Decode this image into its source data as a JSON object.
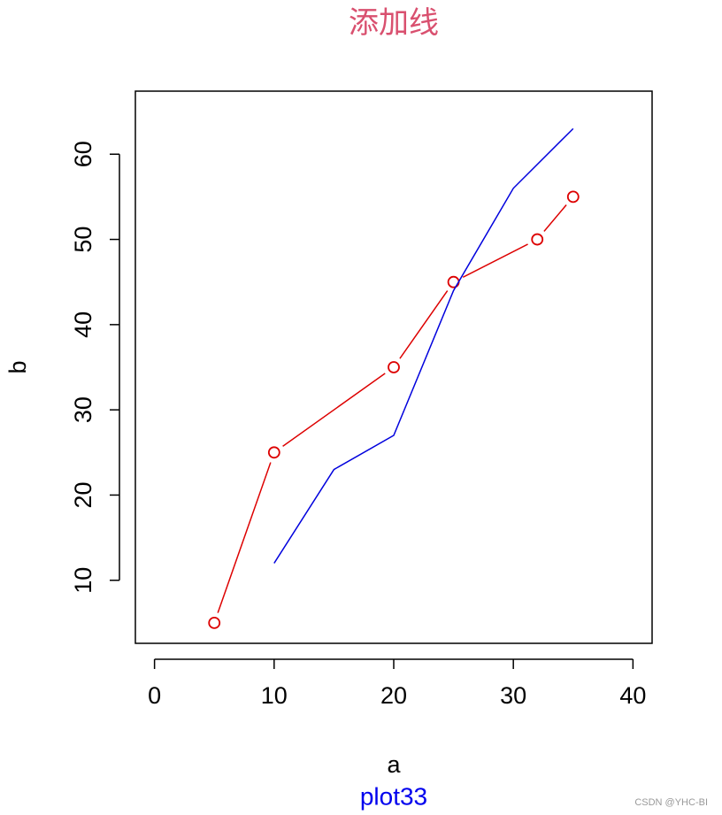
{
  "chart_data": {
    "type": "line",
    "title": "添加线",
    "subtitle": "plot33",
    "x_label": "a",
    "y_label": "b",
    "xlim": [
      -1.6,
      41.6
    ],
    "ylim": [
      2.6,
      67.4
    ],
    "xticks": [
      0,
      10,
      20,
      30,
      40
    ],
    "yticks": [
      10,
      20,
      30,
      40,
      50,
      60
    ],
    "series": [
      {
        "color": "#dd0000",
        "marker": "circle",
        "x": [
          5,
          10,
          20,
          25,
          32,
          35
        ],
        "values": [
          5,
          25,
          35,
          45,
          50,
          55
        ]
      },
      {
        "color": "#0000dd",
        "x": [
          10,
          15,
          20,
          25,
          30,
          35
        ],
        "values": [
          12,
          23,
          27,
          44,
          56,
          63
        ]
      }
    ],
    "watermark": "CSDN @YHC-BI"
  }
}
